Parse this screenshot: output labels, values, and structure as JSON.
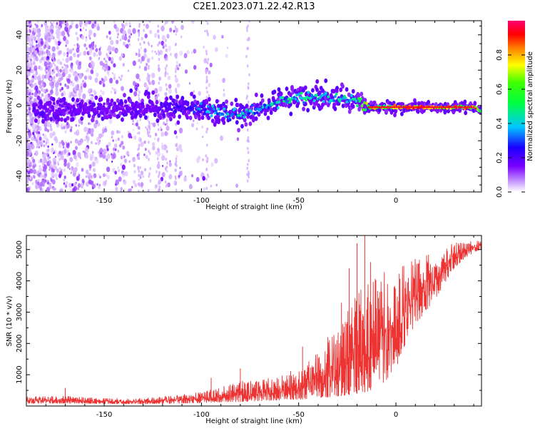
{
  "page": {
    "title": "C2E1.2023.071.22.42.R13"
  },
  "chart_data": [
    {
      "type": "heatmap",
      "title": "",
      "xlabel": "Height of straight line (km)",
      "ylabel": "Frequency (Hz)",
      "xlim": [
        -190,
        44
      ],
      "ylim": [
        -49,
        48
      ],
      "x_ticks": [
        -150,
        -100,
        -50,
        0
      ],
      "y_ticks": [
        -40,
        -20,
        0,
        20,
        40
      ],
      "grid": false,
      "colorbar": {
        "label": "Normalized spectral amplitude",
        "range": [
          0,
          1
        ],
        "ticks": [
          0.0,
          0.2,
          0.4,
          0.6,
          0.8
        ],
        "colormap": "gist_rainbow reversed (white → purple → blue → cyan → green → yellow → red → pink)"
      },
      "ridge": {
        "description": "narrow high-amplitude band near 0 Hz, drifting from about -5 Hz at -90 km to about +5 Hz at -30 km, then flat near -1 Hz from -15 km to +40 km",
        "x": [
          -170,
          -150,
          -130,
          -110,
          -100,
          -90,
          -80,
          -70,
          -60,
          -50,
          -40,
          -30,
          -20,
          -15,
          -10,
          0,
          10,
          20,
          30,
          40,
          43
        ],
        "y": [
          -2,
          -2,
          -1,
          -1,
          -2,
          -4,
          -5,
          -2,
          2,
          4,
          5,
          4,
          3,
          -1,
          -1,
          -1,
          -1,
          -1,
          -1,
          -1,
          -3
        ],
        "peak_amplitude": [
          0.1,
          0.12,
          0.15,
          0.25,
          0.35,
          0.4,
          0.45,
          0.4,
          0.45,
          0.5,
          0.45,
          0.45,
          0.5,
          0.8,
          0.8,
          0.8,
          0.9,
          0.9,
          0.9,
          0.9,
          0.6
        ]
      }
    },
    {
      "type": "line",
      "title": "",
      "xlabel": "Height of straight line (km)",
      "ylabel": "SNR (10 * v/v)",
      "xlim": [
        -190,
        44
      ],
      "ylim": [
        0,
        5450
      ],
      "x_ticks": [
        -150,
        -100,
        -50,
        0
      ],
      "y_ticks": [
        1000,
        2000,
        3000,
        4000,
        5000
      ],
      "grid": false,
      "series": [
        {
          "color": "#ee3333",
          "x": [
            -190,
            -170,
            -150,
            -130,
            -110,
            -100,
            -90,
            -80,
            -70,
            -60,
            -50,
            -40,
            -30,
            -25,
            -20,
            -15,
            -10,
            -5,
            0,
            5,
            10,
            15,
            20,
            25,
            30,
            35,
            40,
            44
          ],
          "low": [
            80,
            80,
            70,
            60,
            80,
            100,
            120,
            130,
            150,
            180,
            200,
            250,
            300,
            350,
            400,
            450,
            600,
            800,
            1200,
            2000,
            2600,
            3000,
            3400,
            3900,
            4400,
            4700,
            4900,
            5000
          ],
          "high": [
            300,
            320,
            250,
            250,
            350,
            450,
            600,
            800,
            800,
            1000,
            1200,
            1700,
            2400,
            3000,
            3600,
            3900,
            4200,
            4300,
            4400,
            4500,
            4700,
            4800,
            4900,
            5100,
            5200,
            5300,
            5300,
            5250
          ],
          "peaks": [
            [
              -170,
              580
            ],
            [
              -20,
              5200
            ],
            [
              -16,
              5450
            ],
            [
              -13,
              4600
            ],
            [
              -24,
              4400
            ],
            [
              -28,
              3300
            ],
            [
              -35,
              2200
            ],
            [
              -48,
              1900
            ],
            [
              -80,
              1200
            ],
            [
              -95,
              900
            ]
          ]
        }
      ]
    }
  ]
}
